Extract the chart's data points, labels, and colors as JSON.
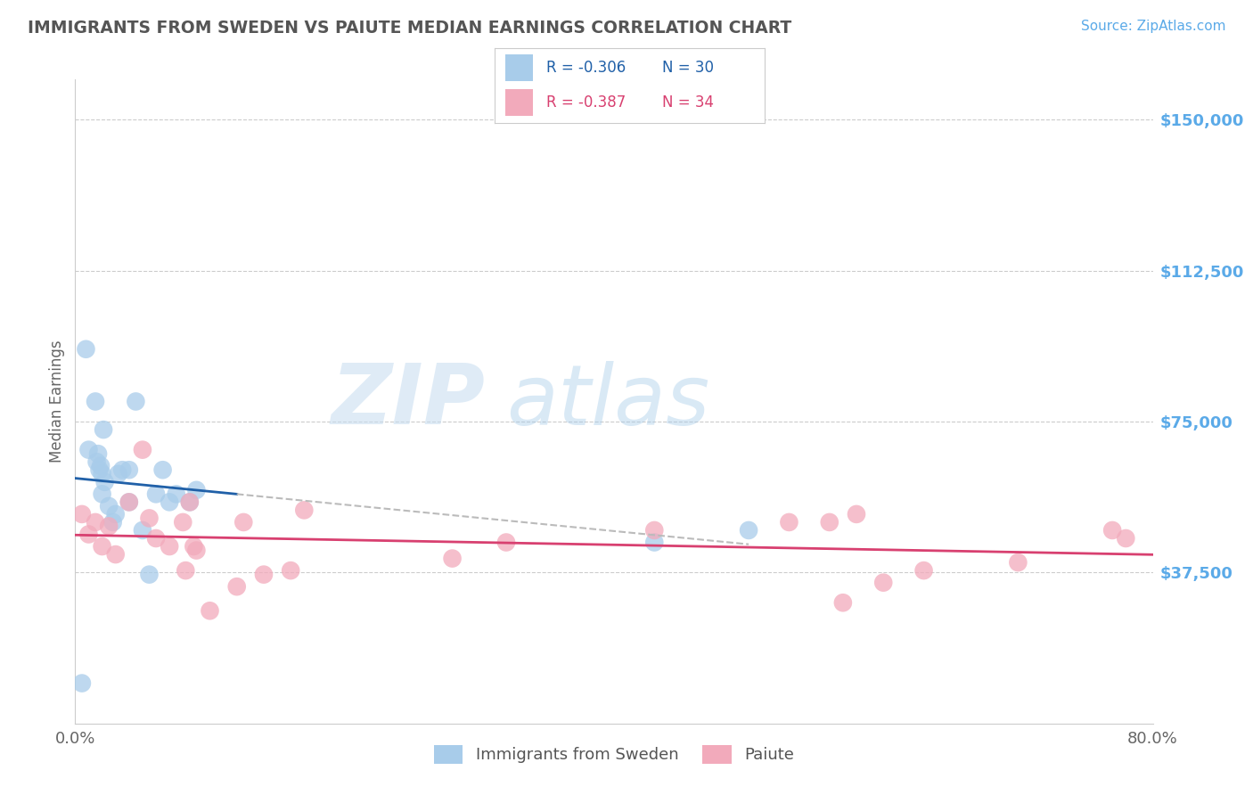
{
  "title": "IMMIGRANTS FROM SWEDEN VS PAIUTE MEDIAN EARNINGS CORRELATION CHART",
  "source_text": "Source: ZipAtlas.com",
  "ylabel": "Median Earnings",
  "xlim": [
    0.0,
    0.8
  ],
  "ylim": [
    0,
    160000
  ],
  "yticks": [
    0,
    37500,
    75000,
    112500,
    150000
  ],
  "ytick_labels": [
    "",
    "$37,500",
    "$75,000",
    "$112,500",
    "$150,000"
  ],
  "xtick_labels": [
    "0.0%",
    "80.0%"
  ],
  "legend_labels": [
    "Immigrants from Sweden",
    "Paiute"
  ],
  "legend_r_blue": "R = -0.306",
  "legend_n_blue": "N = 30",
  "legend_r_pink": "R = -0.387",
  "legend_n_pink": "N = 34",
  "watermark_zip": "ZIP",
  "watermark_atlas": "atlas",
  "blue_color": "#A8CCEA",
  "pink_color": "#F2AABB",
  "blue_line_color": "#2060A8",
  "pink_line_color": "#D84070",
  "title_color": "#555555",
  "right_label_color": "#5BAAE8",
  "dashed_gray": "#BBBBBB",
  "sweden_x": [
    0.005,
    0.008,
    0.01,
    0.015,
    0.016,
    0.017,
    0.018,
    0.019,
    0.02,
    0.02,
    0.021,
    0.022,
    0.025,
    0.028,
    0.03,
    0.032,
    0.035,
    0.04,
    0.04,
    0.045,
    0.05,
    0.055,
    0.06,
    0.065,
    0.07,
    0.075,
    0.085,
    0.09,
    0.43,
    0.5
  ],
  "sweden_y": [
    10000,
    93000,
    68000,
    80000,
    65000,
    67000,
    63000,
    64000,
    62000,
    57000,
    73000,
    60000,
    54000,
    50000,
    52000,
    62000,
    63000,
    55000,
    63000,
    80000,
    48000,
    37000,
    57000,
    63000,
    55000,
    57000,
    55000,
    58000,
    45000,
    48000
  ],
  "paiute_x": [
    0.005,
    0.01,
    0.015,
    0.02,
    0.025,
    0.03,
    0.04,
    0.05,
    0.055,
    0.06,
    0.07,
    0.08,
    0.082,
    0.085,
    0.088,
    0.09,
    0.1,
    0.12,
    0.125,
    0.14,
    0.16,
    0.17,
    0.28,
    0.32,
    0.43,
    0.53,
    0.56,
    0.57,
    0.58,
    0.6,
    0.63,
    0.7,
    0.77,
    0.78
  ],
  "paiute_y": [
    52000,
    47000,
    50000,
    44000,
    49000,
    42000,
    55000,
    68000,
    51000,
    46000,
    44000,
    50000,
    38000,
    55000,
    44000,
    43000,
    28000,
    34000,
    50000,
    37000,
    38000,
    53000,
    41000,
    45000,
    48000,
    50000,
    50000,
    30000,
    52000,
    35000,
    38000,
    40000,
    48000,
    46000
  ]
}
